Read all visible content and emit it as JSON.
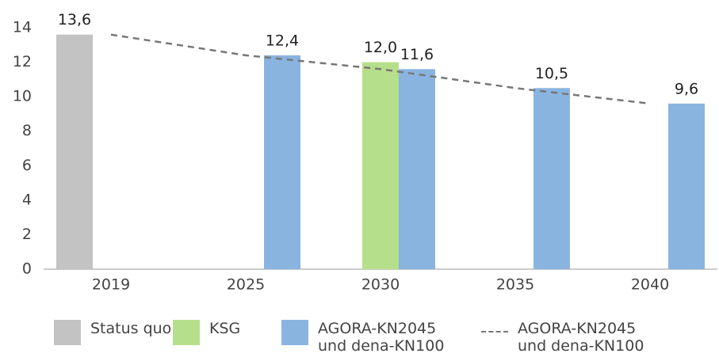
{
  "chart_data": {
    "type": "bar",
    "categories": [
      "2019",
      "2025",
      "2030",
      "2035",
      "2040"
    ],
    "series": [
      {
        "name": "Status quo",
        "color": "#c3c3c3",
        "values": [
          13.6,
          null,
          null,
          null,
          null
        ],
        "value_labels": [
          "13,6",
          null,
          null,
          null,
          null
        ]
      },
      {
        "name": "KSG",
        "color": "#b6df8b",
        "values": [
          null,
          null,
          12.0,
          null,
          null
        ],
        "value_labels": [
          null,
          null,
          "12,0",
          null,
          null
        ]
      },
      {
        "name": "AGORA-KN2045\nund dena-KN100",
        "color": "#8ab4e0",
        "values": [
          null,
          12.4,
          11.6,
          10.5,
          9.6
        ],
        "value_labels": [
          null,
          "12,4",
          "11,6",
          "10,5",
          "9,6"
        ]
      },
      {
        "name": "AGORA-KN2045\nund dena-KN100",
        "type": "line",
        "style": "dashed",
        "color": "#777777",
        "values": [
          13.6,
          12.4,
          11.6,
          10.5,
          9.6
        ]
      }
    ],
    "ylim": [
      0,
      14
    ],
    "yticks": [
      0,
      2,
      4,
      6,
      8,
      10,
      12,
      14
    ],
    "grid": false
  }
}
